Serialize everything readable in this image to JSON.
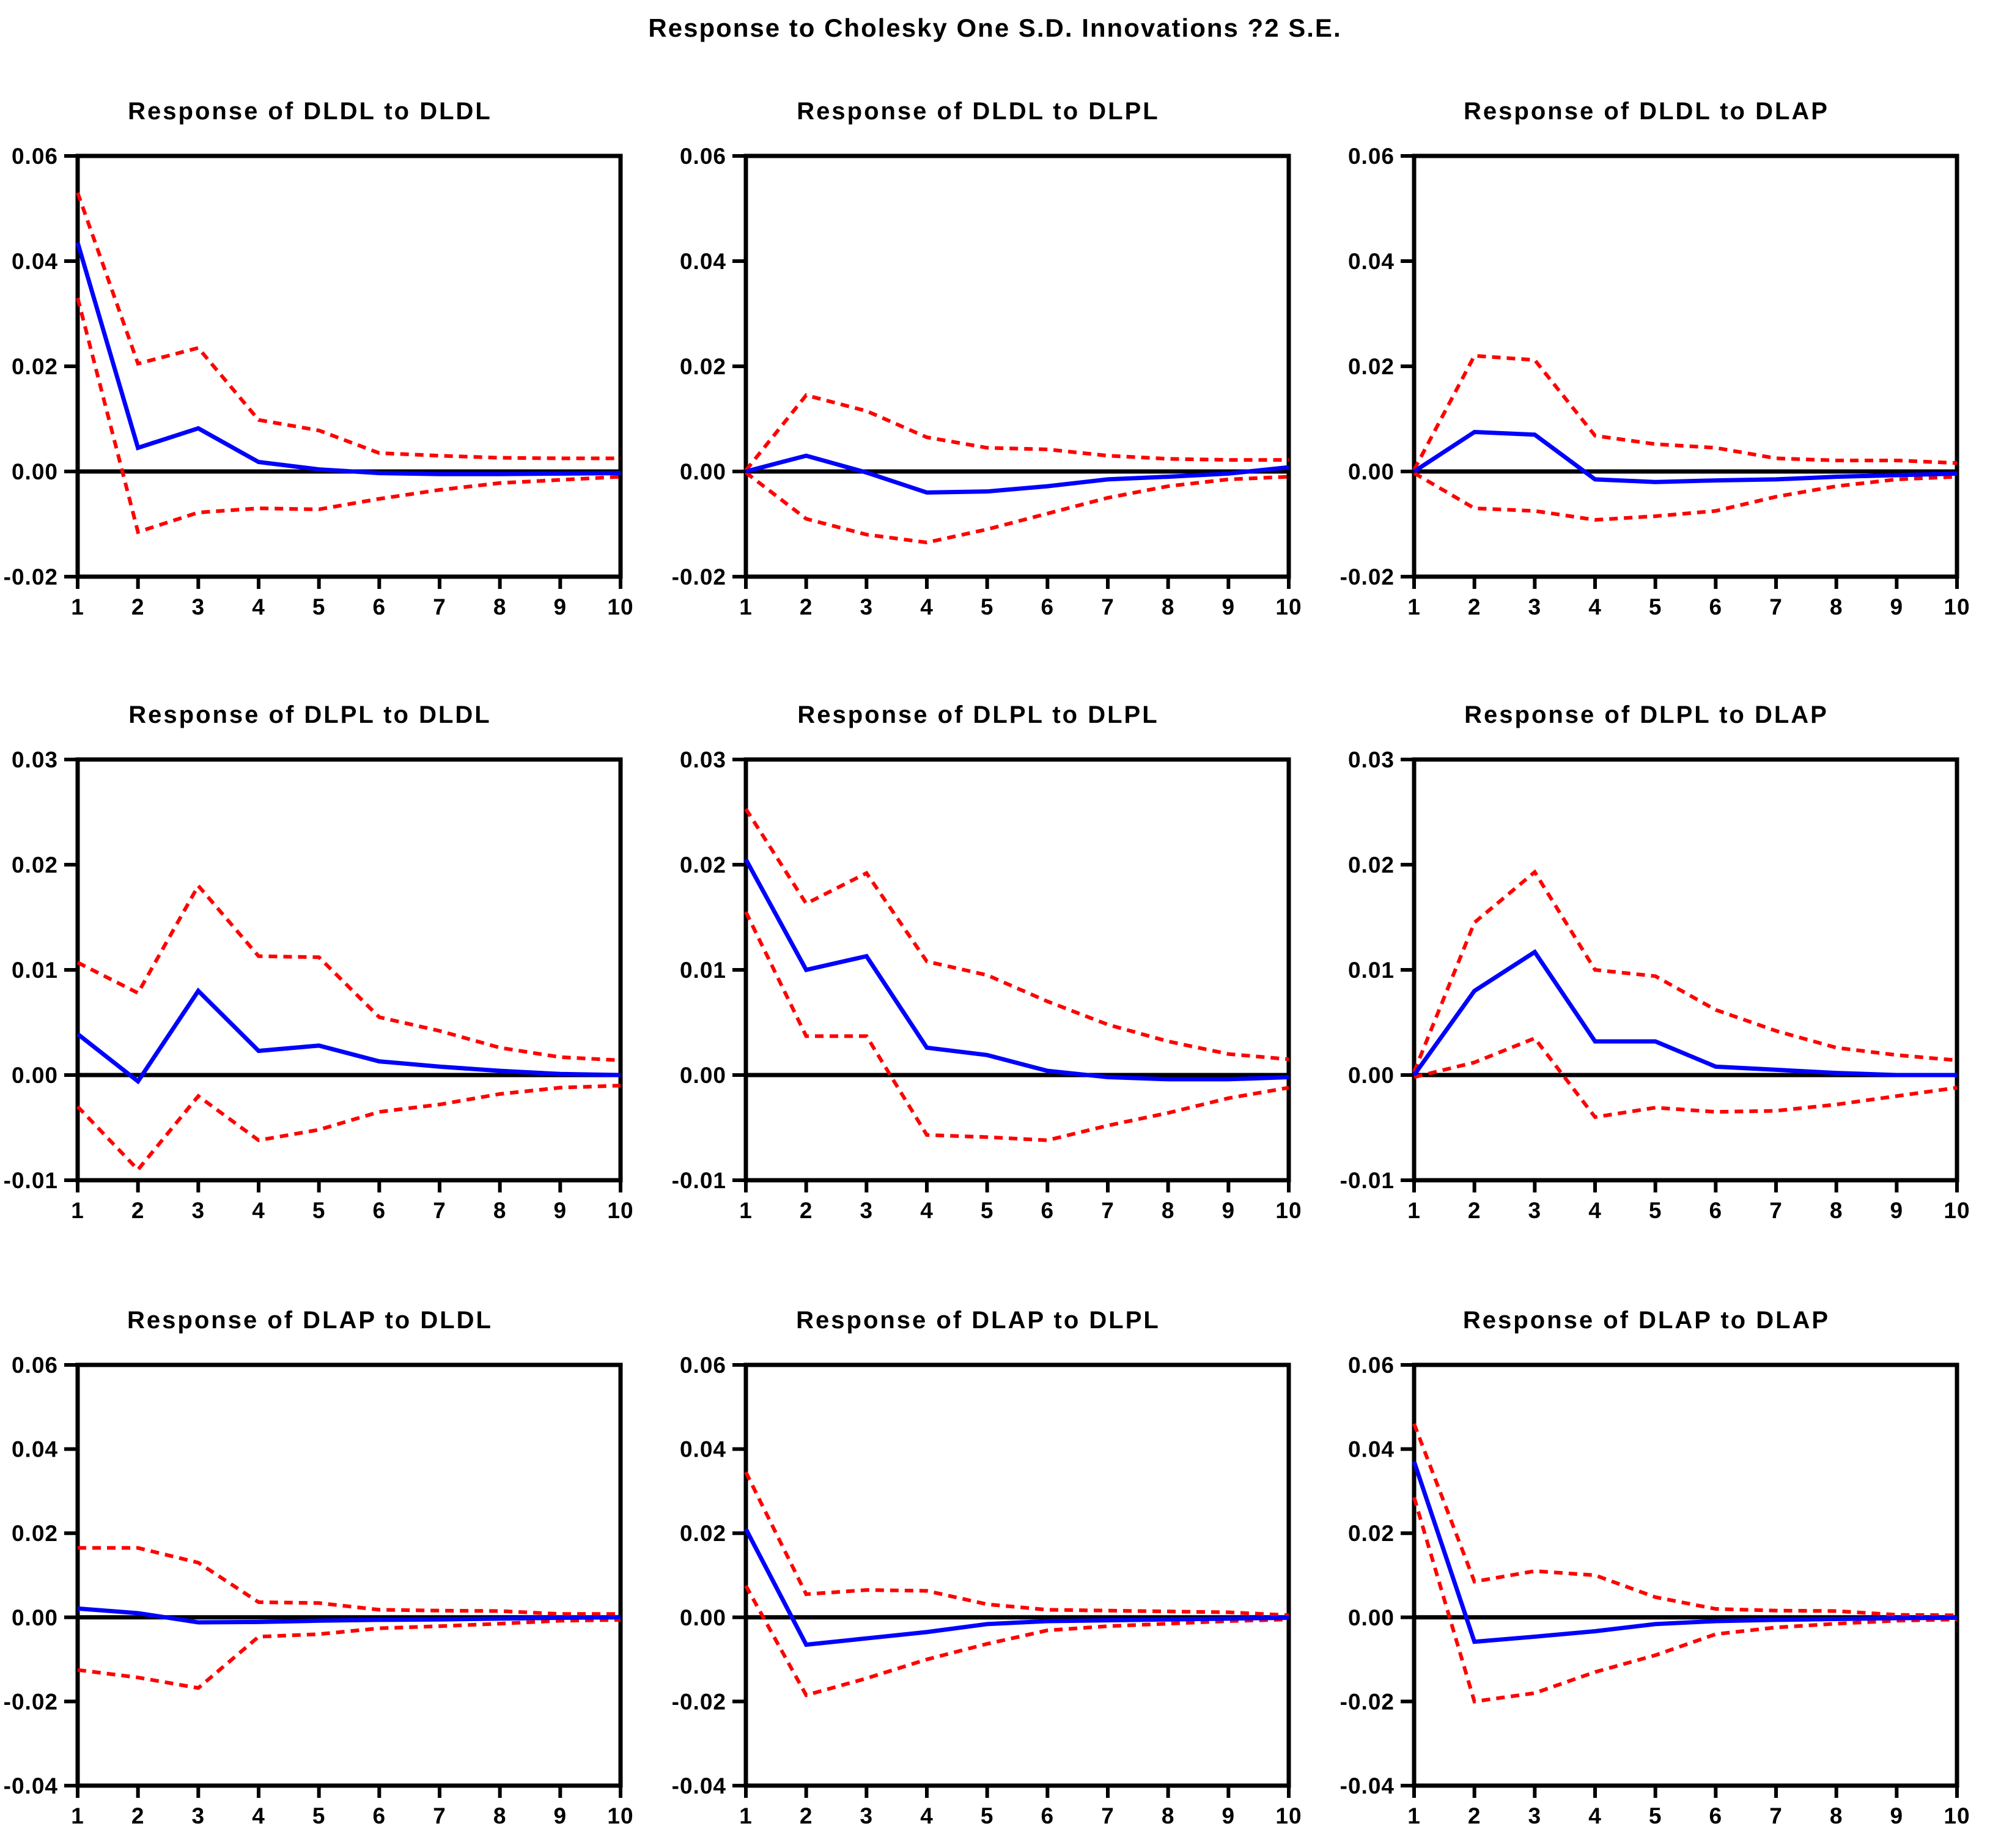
{
  "figure": {
    "title": "Response to Cholesky One S.D. Innovations ?2 S.E.",
    "colors": {
      "response_line": "#0000FF",
      "se_band_line": "#FF0000",
      "zero_line": "#000000",
      "axis": "#000000",
      "background": "#FFFFFF"
    },
    "x_ticks": [
      "1",
      "2",
      "3",
      "4",
      "5",
      "6",
      "7",
      "8",
      "9",
      "10"
    ],
    "grid": "off",
    "legend": "none"
  },
  "chart_data": [
    {
      "type": "line",
      "title": "Response of DLDL to DLDL",
      "x": [
        1,
        2,
        3,
        4,
        5,
        6,
        7,
        8,
        9,
        10
      ],
      "ylim": [
        -0.02,
        0.06
      ],
      "ytick_labels": [
        "0.06",
        "0.04",
        "0.02",
        "0.00",
        "-0.02"
      ],
      "series": [
        {
          "name": "upper band",
          "color": "#FF0000",
          "line_style": "dashed",
          "values": [
            0.053,
            0.0205,
            0.0235,
            0.0098,
            0.0078,
            0.0035,
            0.003,
            0.0026,
            0.0025,
            0.0025
          ]
        },
        {
          "name": "lower band",
          "color": "#FF0000",
          "line_style": "dashed",
          "values": [
            0.033,
            -0.0115,
            -0.0078,
            -0.007,
            -0.0072,
            -0.0052,
            -0.0035,
            -0.0022,
            -0.0016,
            -0.001
          ]
        },
        {
          "name": "response",
          "color": "#0000FF",
          "line_style": "solid",
          "values": [
            0.0435,
            0.0045,
            0.0082,
            0.0018,
            0.0004,
            -0.0003,
            -0.0005,
            -0.0005,
            -0.0004,
            -0.0003
          ]
        }
      ]
    },
    {
      "type": "line",
      "title": "Response of DLDL to DLPL",
      "x": [
        1,
        2,
        3,
        4,
        5,
        6,
        7,
        8,
        9,
        10
      ],
      "ylim": [
        -0.02,
        0.06
      ],
      "ytick_labels": [
        "0.06",
        "0.04",
        "0.02",
        "0.00",
        "-0.02"
      ],
      "series": [
        {
          "name": "upper band",
          "color": "#FF0000",
          "line_style": "dashed",
          "values": [
            0.0002,
            0.0145,
            0.0115,
            0.0065,
            0.0045,
            0.0042,
            0.003,
            0.0024,
            0.0022,
            0.0022
          ]
        },
        {
          "name": "lower band",
          "color": "#FF0000",
          "line_style": "dashed",
          "values": [
            -0.0002,
            -0.009,
            -0.012,
            -0.0135,
            -0.011,
            -0.008,
            -0.005,
            -0.0028,
            -0.0015,
            -0.001
          ]
        },
        {
          "name": "response",
          "color": "#0000FF",
          "line_style": "solid",
          "values": [
            0.0,
            0.003,
            -0.0002,
            -0.004,
            -0.0038,
            -0.0028,
            -0.0015,
            -0.001,
            -0.0004,
            0.0008
          ]
        }
      ]
    },
    {
      "type": "line",
      "title": "Response of DLDL to DLAP",
      "x": [
        1,
        2,
        3,
        4,
        5,
        6,
        7,
        8,
        9,
        10
      ],
      "ylim": [
        -0.02,
        0.06
      ],
      "ytick_labels": [
        "0.06",
        "0.04",
        "0.02",
        "0.00",
        "-0.02"
      ],
      "series": [
        {
          "name": "upper band",
          "color": "#FF0000",
          "line_style": "dashed",
          "values": [
            0.0003,
            0.022,
            0.0212,
            0.0068,
            0.0052,
            0.0045,
            0.0025,
            0.0021,
            0.0021,
            0.0016
          ]
        },
        {
          "name": "lower band",
          "color": "#FF0000",
          "line_style": "dashed",
          "values": [
            -0.0003,
            -0.007,
            -0.0075,
            -0.0092,
            -0.0085,
            -0.0075,
            -0.0048,
            -0.0028,
            -0.0015,
            -0.001
          ]
        },
        {
          "name": "response",
          "color": "#0000FF",
          "line_style": "solid",
          "values": [
            0.0,
            0.0075,
            0.007,
            -0.0015,
            -0.002,
            -0.0017,
            -0.0015,
            -0.001,
            -0.0007,
            -0.0004
          ]
        }
      ]
    },
    {
      "type": "line",
      "title": "Response of DLPL to DLDL",
      "x": [
        1,
        2,
        3,
        4,
        5,
        6,
        7,
        8,
        9,
        10
      ],
      "ylim": [
        -0.01,
        0.03
      ],
      "ytick_labels": [
        "0.03",
        "0.02",
        "0.01",
        "0.00",
        "-0.01"
      ],
      "series": [
        {
          "name": "upper band",
          "color": "#FF0000",
          "line_style": "dashed",
          "values": [
            0.0107,
            0.0078,
            0.018,
            0.0113,
            0.0112,
            0.0055,
            0.0042,
            0.0026,
            0.0017,
            0.0014
          ]
        },
        {
          "name": "lower band",
          "color": "#FF0000",
          "line_style": "dashed",
          "values": [
            -0.003,
            -0.009,
            -0.002,
            -0.0062,
            -0.0052,
            -0.0035,
            -0.0028,
            -0.0018,
            -0.0012,
            -0.001
          ]
        },
        {
          "name": "response",
          "color": "#0000FF",
          "line_style": "solid",
          "values": [
            0.0039,
            -0.0006,
            0.008,
            0.0023,
            0.0028,
            0.0013,
            0.0008,
            0.0004,
            0.0001,
            0.0
          ]
        }
      ]
    },
    {
      "type": "line",
      "title": "Response of DLPL to DLPL",
      "x": [
        1,
        2,
        3,
        4,
        5,
        6,
        7,
        8,
        9,
        10
      ],
      "ylim": [
        -0.01,
        0.03
      ],
      "ytick_labels": [
        "0.03",
        "0.02",
        "0.01",
        "0.00",
        "-0.01"
      ],
      "series": [
        {
          "name": "upper band",
          "color": "#FF0000",
          "line_style": "dashed",
          "values": [
            0.0253,
            0.0163,
            0.0192,
            0.0108,
            0.0095,
            0.007,
            0.0048,
            0.0032,
            0.002,
            0.0015
          ]
        },
        {
          "name": "lower band",
          "color": "#FF0000",
          "line_style": "dashed",
          "values": [
            0.0155,
            0.0037,
            0.0037,
            -0.0057,
            -0.0059,
            -0.0062,
            -0.0048,
            -0.0036,
            -0.0022,
            -0.0012
          ]
        },
        {
          "name": "response",
          "color": "#0000FF",
          "line_style": "solid",
          "values": [
            0.0205,
            0.01,
            0.0113,
            0.0026,
            0.0019,
            0.0004,
            -0.0002,
            -0.0004,
            -0.0004,
            -0.0002
          ]
        }
      ]
    },
    {
      "type": "line",
      "title": "Response of DLPL to DLAP",
      "x": [
        1,
        2,
        3,
        4,
        5,
        6,
        7,
        8,
        9,
        10
      ],
      "ylim": [
        -0.01,
        0.03
      ],
      "ytick_labels": [
        "0.03",
        "0.02",
        "0.01",
        "0.00",
        "-0.01"
      ],
      "series": [
        {
          "name": "upper band",
          "color": "#FF0000",
          "line_style": "dashed",
          "values": [
            0.0003,
            0.0145,
            0.0193,
            0.01,
            0.0094,
            0.0062,
            0.0042,
            0.0026,
            0.0019,
            0.0014
          ]
        },
        {
          "name": "lower band",
          "color": "#FF0000",
          "line_style": "dashed",
          "values": [
            -0.0002,
            0.0012,
            0.0035,
            -0.004,
            -0.0031,
            -0.0035,
            -0.0034,
            -0.0028,
            -0.002,
            -0.0012
          ]
        },
        {
          "name": "response",
          "color": "#0000FF",
          "line_style": "solid",
          "values": [
            0.0,
            0.008,
            0.0117,
            0.0032,
            0.0032,
            0.0008,
            0.0005,
            0.0002,
            0.0,
            0.0
          ]
        }
      ]
    },
    {
      "type": "line",
      "title": "Response of DLAP to DLDL",
      "x": [
        1,
        2,
        3,
        4,
        5,
        6,
        7,
        8,
        9,
        10
      ],
      "ylim": [
        -0.04,
        0.06
      ],
      "ytick_labels": [
        "0.06",
        "0.04",
        "0.02",
        "0.00",
        "-0.02",
        "-0.04"
      ],
      "series": [
        {
          "name": "upper band",
          "color": "#FF0000",
          "line_style": "dashed",
          "values": [
            0.0165,
            0.0165,
            0.013,
            0.0036,
            0.0034,
            0.0018,
            0.0016,
            0.0015,
            0.0008,
            0.0008
          ]
        },
        {
          "name": "lower band",
          "color": "#FF0000",
          "line_style": "dashed",
          "values": [
            -0.0125,
            -0.0143,
            -0.0168,
            -0.0046,
            -0.004,
            -0.0026,
            -0.0021,
            -0.0015,
            -0.0008,
            -0.0006
          ]
        },
        {
          "name": "response",
          "color": "#0000FF",
          "line_style": "solid",
          "values": [
            0.0021,
            0.001,
            -0.0012,
            -0.0011,
            -0.0008,
            -0.0006,
            -0.0005,
            -0.0003,
            -0.0001,
            0.0
          ]
        }
      ]
    },
    {
      "type": "line",
      "title": "Response of DLAP to DLPL",
      "x": [
        1,
        2,
        3,
        4,
        5,
        6,
        7,
        8,
        9,
        10
      ],
      "ylim": [
        -0.04,
        0.06
      ],
      "ytick_labels": [
        "0.06",
        "0.04",
        "0.02",
        "0.00",
        "-0.02",
        "-0.04"
      ],
      "series": [
        {
          "name": "upper band",
          "color": "#FF0000",
          "line_style": "dashed",
          "values": [
            0.0345,
            0.0055,
            0.0065,
            0.0063,
            0.0031,
            0.0018,
            0.0016,
            0.0014,
            0.0012,
            0.0005
          ]
        },
        {
          "name": "lower band",
          "color": "#FF0000",
          "line_style": "dashed",
          "values": [
            0.0075,
            -0.0185,
            -0.0145,
            -0.01,
            -0.0063,
            -0.0031,
            -0.0021,
            -0.0015,
            -0.0009,
            -0.0005
          ]
        },
        {
          "name": "response",
          "color": "#0000FF",
          "line_style": "solid",
          "values": [
            0.021,
            -0.0065,
            -0.005,
            -0.0035,
            -0.0016,
            -0.0009,
            -0.0007,
            -0.0005,
            -0.0003,
            -0.0001
          ]
        }
      ]
    },
    {
      "type": "line",
      "title": "Response of DLAP to DLAP",
      "x": [
        1,
        2,
        3,
        4,
        5,
        6,
        7,
        8,
        9,
        10
      ],
      "ylim": [
        -0.04,
        0.06
      ],
      "ytick_labels": [
        "0.06",
        "0.04",
        "0.02",
        "0.00",
        "-0.02",
        "-0.04"
      ],
      "series": [
        {
          "name": "upper band",
          "color": "#FF0000",
          "line_style": "dashed",
          "values": [
            0.046,
            0.0085,
            0.011,
            0.01,
            0.0048,
            0.002,
            0.0016,
            0.0015,
            0.0006,
            0.0005
          ]
        },
        {
          "name": "lower band",
          "color": "#FF0000",
          "line_style": "dashed",
          "values": [
            0.0285,
            -0.02,
            -0.018,
            -0.013,
            -0.009,
            -0.004,
            -0.0024,
            -0.0015,
            -0.0008,
            -0.0005
          ]
        },
        {
          "name": "response",
          "color": "#0000FF",
          "line_style": "solid",
          "values": [
            0.037,
            -0.0058,
            -0.0046,
            -0.0033,
            -0.0016,
            -0.0009,
            -0.0006,
            -0.0004,
            -0.0002,
            -0.0001
          ]
        }
      ]
    }
  ]
}
